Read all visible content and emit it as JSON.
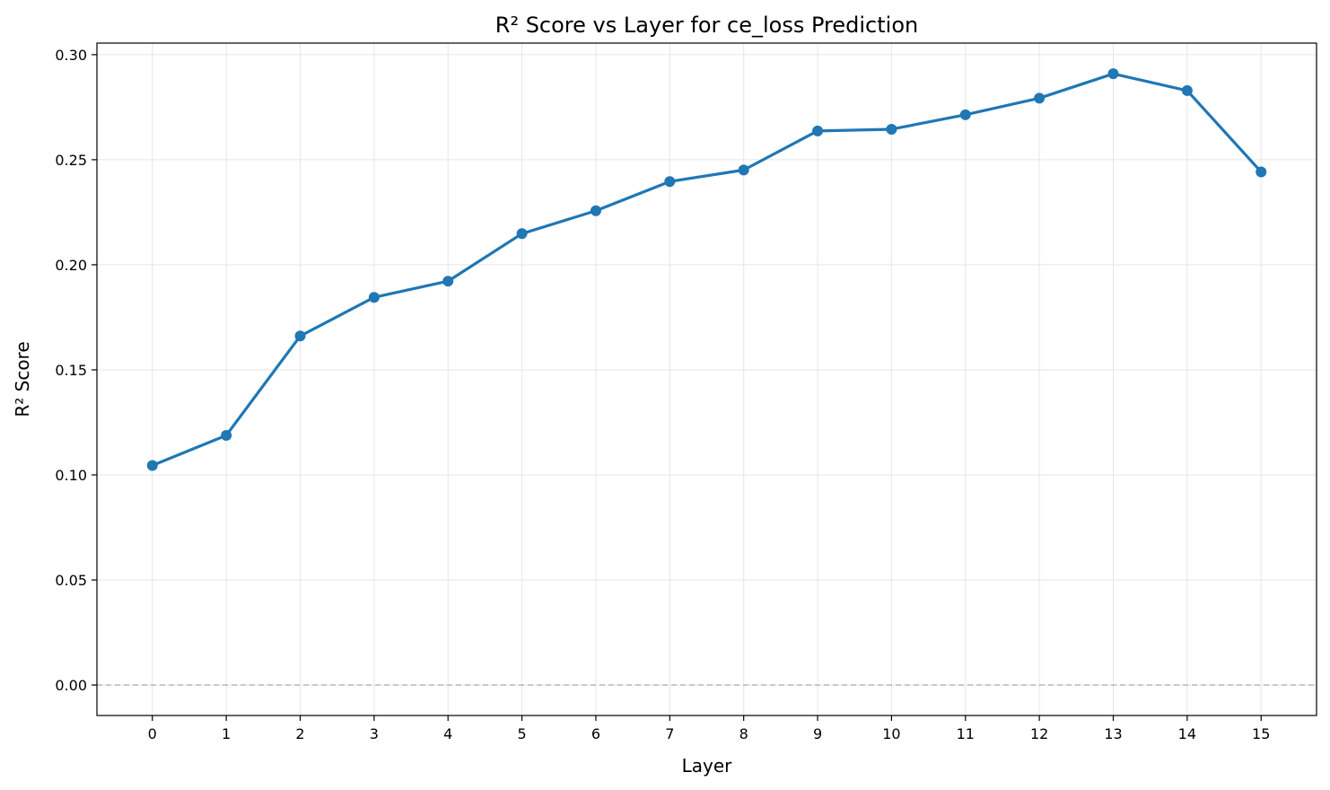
{
  "chart_data": {
    "type": "line",
    "title": "R² Score vs Layer for ce_loss Prediction",
    "xlabel": "Layer",
    "ylabel": "R² Score",
    "x": [
      0,
      1,
      2,
      3,
      4,
      5,
      6,
      7,
      8,
      9,
      10,
      11,
      12,
      13,
      14,
      15
    ],
    "series": [
      {
        "values": [
          0.1045,
          0.1188,
          0.1661,
          0.1845,
          0.1922,
          0.2148,
          0.2257,
          0.2396,
          0.2451,
          0.2637,
          0.2645,
          0.2714,
          0.2793,
          0.2909,
          0.2829,
          0.2442
        ],
        "color": "#1f77b4",
        "marker": "circle"
      }
    ],
    "xlim": [
      -0.75,
      15.75
    ],
    "ylim": [
      -0.0145,
      0.3055
    ],
    "xticks": [
      "0",
      "1",
      "2",
      "3",
      "4",
      "5",
      "6",
      "7",
      "8",
      "9",
      "10",
      "11",
      "12",
      "13",
      "14",
      "15"
    ],
    "yticks": [
      "0.00",
      "0.05",
      "0.10",
      "0.15",
      "0.20",
      "0.25",
      "0.30"
    ],
    "ytick_values": [
      0,
      0.05,
      0.1,
      0.15,
      0.2,
      0.25,
      0.3
    ],
    "reference_line": {
      "y": 0,
      "style": "dashed",
      "color": "#b0b0b0"
    },
    "grid": true,
    "grid_color": "#e6e6e6",
    "axis_color": "#000000"
  }
}
